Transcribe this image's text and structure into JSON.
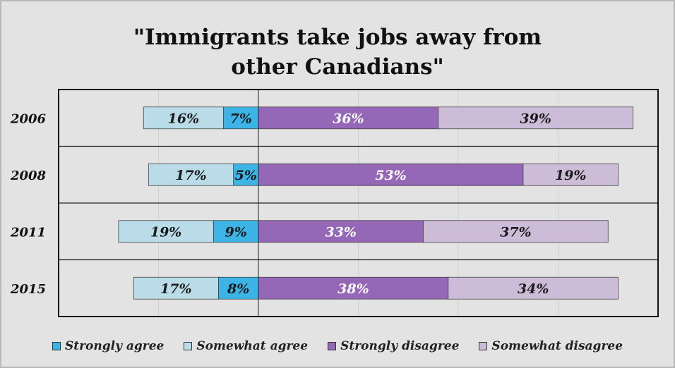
{
  "chart_data": {
    "type": "bar",
    "title_line1": "\"Immigrants take jobs away from",
    "title_line2": "other Canadians\"",
    "categories": [
      "2006",
      "2008",
      "2011",
      "2015"
    ],
    "series": [
      {
        "name": "Strongly agree",
        "color": "#3cb4e6",
        "text_color": "#1a1a1a",
        "values": [
          7,
          5,
          9,
          8
        ],
        "labels": [
          "7%",
          "5%",
          "9%",
          "8%"
        ]
      },
      {
        "name": "Somewhat agree",
        "color": "#b9dce8",
        "text_color": "#1a1a1a",
        "values": [
          16,
          17,
          19,
          17
        ],
        "labels": [
          "16%",
          "17%",
          "19%",
          "17%"
        ]
      },
      {
        "name": "Strongly disagree",
        "color": "#9468b6",
        "text_color": "#ffffff",
        "values": [
          36,
          53,
          33,
          38
        ],
        "labels": [
          "36%",
          "53%",
          "33%",
          "38%"
        ]
      },
      {
        "name": "Somewhat disagree",
        "color": "#cdbcd8",
        "text_color": "#1a1a1a",
        "values": [
          39,
          19,
          37,
          34
        ],
        "labels": [
          "39%",
          "19%",
          "37%",
          "34%"
        ]
      }
    ],
    "agree_series": [
      "Strongly agree",
      "Somewhat agree"
    ],
    "disagree_series": [
      "Strongly disagree",
      "Somewhat disagree"
    ],
    "xlim": [
      -40,
      80
    ],
    "grid": true,
    "legend_position": "bottom"
  }
}
